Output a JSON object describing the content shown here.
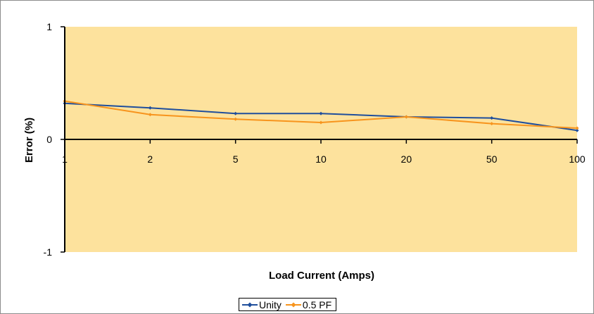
{
  "chart_data": {
    "type": "line",
    "title": "",
    "xlabel": "Load Current (Amps)",
    "ylabel": "Error (%)",
    "categories": [
      "1",
      "2",
      "5",
      "10",
      "20",
      "50",
      "100"
    ],
    "ylim": [
      -1,
      1
    ],
    "yticks": [
      "1",
      "0",
      "-1"
    ],
    "plot_background": "#FDE29D",
    "grid": false,
    "legend_position": "bottom",
    "series": [
      {
        "name": "Unity",
        "color": "#1F4E9C",
        "marker": "diamond",
        "values": [
          0.32,
          0.28,
          0.23,
          0.23,
          0.2,
          0.19,
          0.08
        ]
      },
      {
        "name": "0.5 PF",
        "color": "#F7941D",
        "marker": "diamond",
        "values": [
          0.34,
          0.22,
          0.18,
          0.15,
          0.2,
          0.14,
          0.1
        ]
      }
    ]
  }
}
